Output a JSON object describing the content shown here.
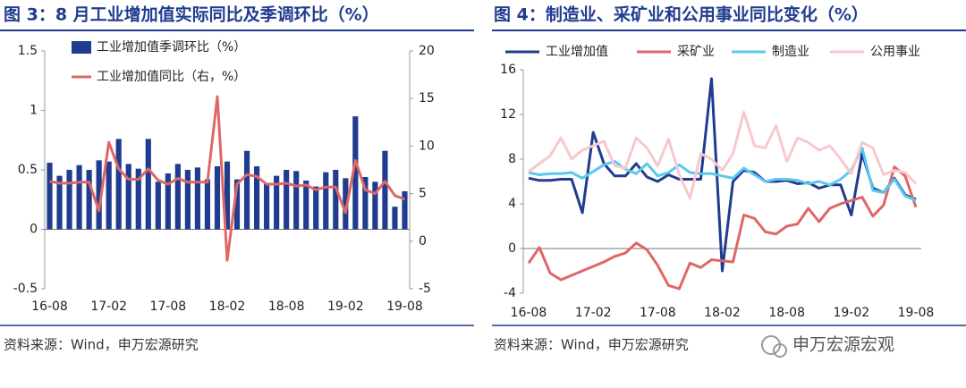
{
  "chart_data": [
    {
      "type": "combo",
      "title": "图 3：8 月工业增加值实际同比及季调环比（%）",
      "source": "资料来源：Wind，申万宏源研究",
      "categories": [
        "16-08",
        null,
        null,
        null,
        null,
        null,
        "17-02",
        null,
        null,
        null,
        null,
        null,
        "17-08",
        null,
        null,
        null,
        null,
        null,
        "18-02",
        null,
        null,
        null,
        null,
        null,
        "18-08",
        null,
        null,
        null,
        null,
        null,
        "19-02",
        null,
        null,
        null,
        null,
        null,
        "19-08"
      ],
      "series": [
        {
          "name": "工业增加值季调环比（%）",
          "type": "bar",
          "color": "#1f3c8f",
          "values": [
            0.56,
            0.45,
            0.5,
            0.54,
            0.5,
            0.58,
            0.57,
            0.76,
            0.55,
            0.51,
            0.76,
            0.4,
            0.47,
            0.55,
            0.5,
            0.52,
            0.42,
            0.53,
            0.57,
            0.42,
            0.66,
            0.53,
            0.38,
            0.45,
            0.5,
            0.49,
            0.41,
            0.36,
            0.48,
            0.5,
            0.43,
            0.95,
            0.44,
            0.4,
            0.66,
            0.19,
            0.32
          ]
        },
        {
          "name": "工业增加值同比（右，%）",
          "type": "line",
          "axis": "y2",
          "color": "#e06666",
          "values": [
            6.3,
            6.1,
            6.1,
            6.2,
            6.2,
            3.2,
            10.4,
            7.6,
            6.5,
            6.5,
            7.6,
            6.4,
            6.0,
            6.6,
            6.2,
            6.2,
            6.2,
            15.2,
            -2.0,
            6.0,
            7.0,
            6.8,
            6.0,
            6.0,
            6.1,
            5.8,
            5.9,
            5.4,
            5.7,
            5.7,
            3.0,
            8.5,
            5.4,
            5.0,
            6.3,
            4.8,
            4.4
          ]
        }
      ],
      "ylim": [
        -0.5,
        1.5
      ],
      "yticks": [
        -0.5,
        0,
        0.5,
        1,
        1.5
      ],
      "y2lim": [
        -5,
        20
      ],
      "y2ticks": [
        -5,
        0,
        5,
        10,
        15,
        20
      ],
      "legend": "top-left"
    },
    {
      "type": "line",
      "title": "图 4：制造业、采矿业和公用事业同比变化（%）",
      "source": "资料来源：Wind，申万宏源研究",
      "categories": [
        "16-08",
        null,
        null,
        null,
        null,
        null,
        "17-02",
        null,
        null,
        null,
        null,
        null,
        "17-08",
        null,
        null,
        null,
        null,
        null,
        "18-02",
        null,
        null,
        null,
        null,
        null,
        "18-08",
        null,
        null,
        null,
        null,
        null,
        "19-02",
        null,
        null,
        null,
        null,
        null,
        "19-08"
      ],
      "series": [
        {
          "name": "工业增加值",
          "color": "#1f3c8f",
          "values": [
            6.3,
            6.1,
            6.1,
            6.2,
            6.2,
            3.2,
            10.4,
            7.6,
            6.5,
            6.5,
            7.6,
            6.4,
            6.0,
            6.6,
            6.2,
            6.2,
            6.2,
            15.2,
            -2.0,
            6.0,
            7.0,
            6.8,
            6.0,
            6.0,
            6.1,
            5.8,
            5.9,
            5.4,
            5.7,
            5.7,
            3.0,
            8.5,
            5.4,
            5.0,
            6.3,
            4.8,
            4.4
          ]
        },
        {
          "name": "采矿业",
          "color": "#e06666",
          "values": [
            -1.3,
            0.1,
            -2.2,
            -2.8,
            -2.4,
            -2.0,
            -1.6,
            -1.2,
            -0.7,
            -0.4,
            0.5,
            -0.1,
            -1.5,
            -3.3,
            -3.6,
            -1.3,
            -1.7,
            -1.0,
            -1.1,
            -1.2,
            3.0,
            2.7,
            1.5,
            1.3,
            2.0,
            2.2,
            3.6,
            2.4,
            3.6,
            4.0,
            4.3,
            4.6,
            2.9,
            3.9,
            7.3,
            6.5,
            3.7
          ]
        },
        {
          "name": "制造业",
          "color": "#5bc8f0",
          "values": [
            6.8,
            6.6,
            6.7,
            6.7,
            6.8,
            6.3,
            6.9,
            7.5,
            7.8,
            7.1,
            6.7,
            7.6,
            6.5,
            6.8,
            7.5,
            6.8,
            6.7,
            6.7,
            6.5,
            6.3,
            7.2,
            6.6,
            6.0,
            6.2,
            6.2,
            6.1,
            5.8,
            6.0,
            5.7,
            6.2,
            7.0,
            9.0,
            5.2,
            5.0,
            6.2,
            4.7,
            4.3
          ]
        },
        {
          "name": "公用事业",
          "color": "#f8c8cc",
          "values": [
            6.9,
            7.6,
            8.3,
            9.9,
            8.0,
            8.8,
            9.2,
            9.6,
            7.4,
            7.2,
            9.9,
            9.0,
            7.4,
            9.8,
            6.6,
            4.5,
            8.5,
            8.0,
            7.0,
            8.5,
            12.2,
            9.2,
            9.0,
            11.0,
            7.8,
            9.9,
            9.5,
            8.8,
            9.2,
            8.0,
            6.7,
            9.5,
            9.0,
            6.6,
            7.0,
            6.8,
            5.8
          ]
        }
      ],
      "ylim": [
        -4,
        16
      ],
      "yticks": [
        -4,
        0,
        4,
        8,
        12,
        16
      ],
      "legend": "top"
    }
  ],
  "watermark": "申万宏源宏观"
}
